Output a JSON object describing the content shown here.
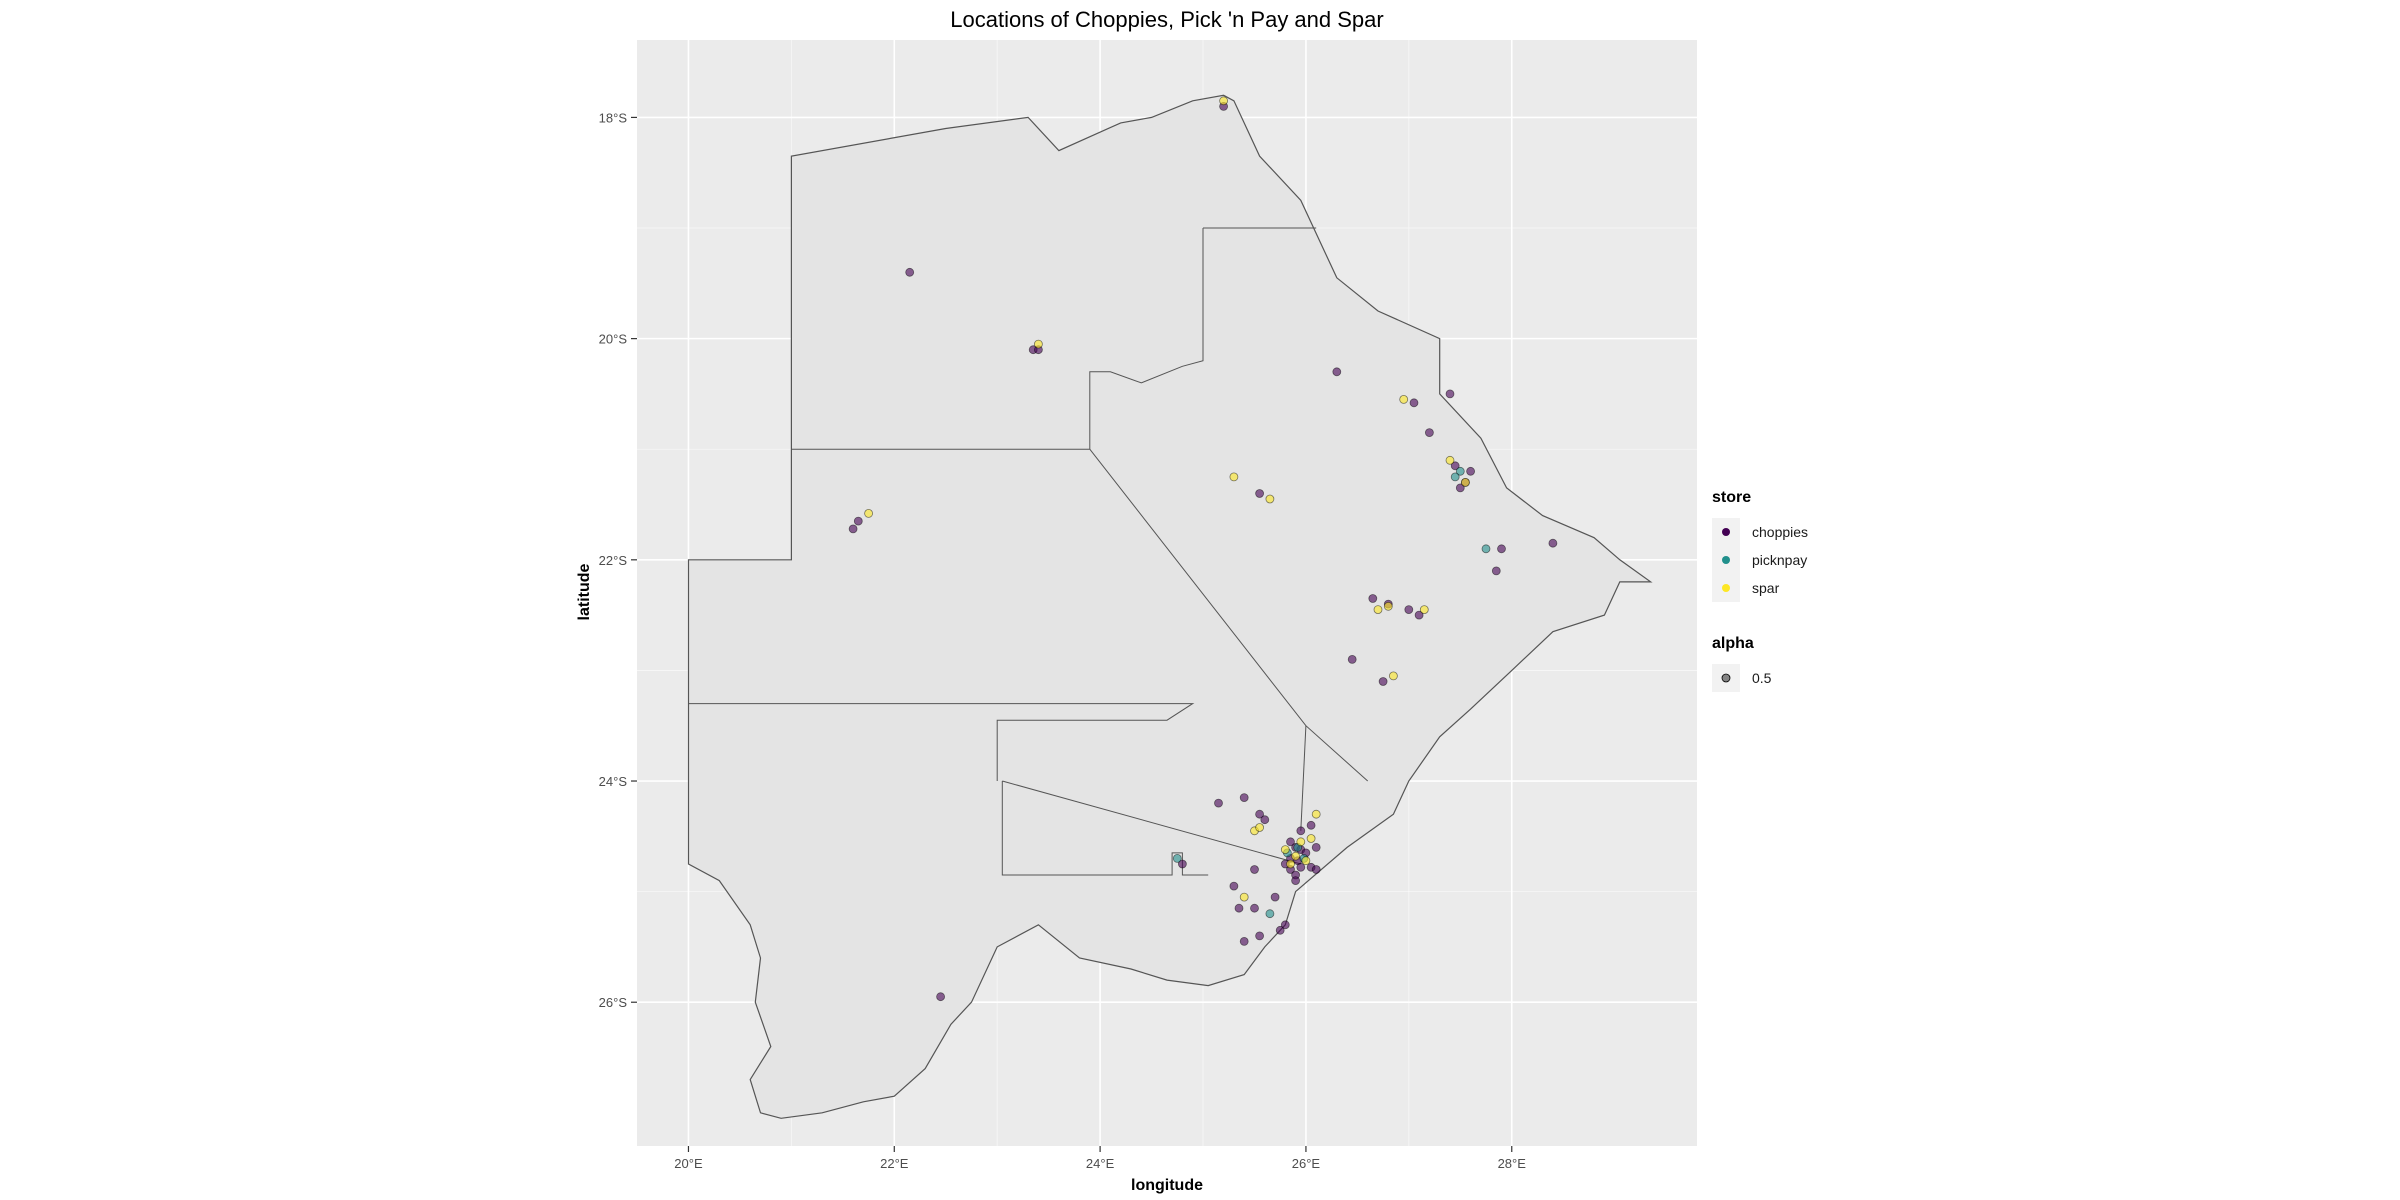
{
  "chart_data": {
    "type": "scatter",
    "title": "Locations of Choppies, Pick 'n Pay and Spar",
    "xlabel": "longitude",
    "ylabel": "latitude",
    "xlim": [
      19.5,
      29.8
    ],
    "ylim": [
      -27.3,
      -17.3
    ],
    "x_ticks": [
      20,
      22,
      24,
      26,
      28
    ],
    "x_tick_labels": [
      "20°E",
      "22°E",
      "24°E",
      "26°E",
      "28°E"
    ],
    "y_ticks": [
      -18,
      -20,
      -22,
      -24,
      -26
    ],
    "y_tick_labels": [
      "18°S",
      "20°S",
      "22°S",
      "24°S",
      "26°S"
    ],
    "grid": true,
    "panel_background": "#ebebeb",
    "gridline_color": "#ffffff",
    "map_fill": "#e4e4e4",
    "map_stroke": "#555555",
    "legends": [
      {
        "title": "store",
        "entries": [
          {
            "label": "choppies",
            "color": "#440154"
          },
          {
            "label": "picknpay",
            "color": "#21908c"
          },
          {
            "label": "spar",
            "color": "#fde725"
          }
        ]
      },
      {
        "title": "alpha",
        "entries": [
          {
            "label": "0.5",
            "color": "#555555"
          }
        ]
      }
    ],
    "series": [
      {
        "name": "choppies",
        "color": "#440154",
        "points": [
          [
            25.2,
            -17.9
          ],
          [
            22.15,
            -19.4
          ],
          [
            23.35,
            -20.1
          ],
          [
            23.4,
            -20.1
          ],
          [
            26.3,
            -20.3
          ],
          [
            27.05,
            -20.58
          ],
          [
            27.4,
            -20.5
          ],
          [
            27.2,
            -20.85
          ],
          [
            27.45,
            -21.15
          ],
          [
            27.6,
            -21.2
          ],
          [
            27.55,
            -21.3
          ],
          [
            27.5,
            -21.35
          ],
          [
            25.55,
            -21.4
          ],
          [
            21.65,
            -21.65
          ],
          [
            21.6,
            -21.72
          ],
          [
            27.9,
            -21.9
          ],
          [
            27.85,
            -22.1
          ],
          [
            28.4,
            -21.85
          ],
          [
            26.65,
            -22.35
          ],
          [
            26.8,
            -22.4
          ],
          [
            27.0,
            -22.45
          ],
          [
            27.1,
            -22.5
          ],
          [
            26.45,
            -22.9
          ],
          [
            26.75,
            -23.1
          ],
          [
            25.4,
            -24.15
          ],
          [
            25.15,
            -24.2
          ],
          [
            25.55,
            -24.3
          ],
          [
            25.6,
            -24.35
          ],
          [
            25.95,
            -24.45
          ],
          [
            26.05,
            -24.4
          ],
          [
            25.85,
            -24.55
          ],
          [
            25.9,
            -24.6
          ],
          [
            25.95,
            -24.62
          ],
          [
            26.0,
            -24.65
          ],
          [
            25.85,
            -24.7
          ],
          [
            25.92,
            -24.72
          ],
          [
            25.8,
            -24.75
          ],
          [
            25.95,
            -24.78
          ],
          [
            26.05,
            -24.78
          ],
          [
            25.85,
            -24.8
          ],
          [
            25.9,
            -24.85
          ],
          [
            26.1,
            -24.6
          ],
          [
            26.1,
            -24.8
          ],
          [
            25.9,
            -24.9
          ],
          [
            25.5,
            -24.8
          ],
          [
            25.3,
            -24.95
          ],
          [
            25.7,
            -25.05
          ],
          [
            25.35,
            -25.15
          ],
          [
            25.5,
            -25.15
          ],
          [
            25.8,
            -25.3
          ],
          [
            25.75,
            -25.35
          ],
          [
            25.55,
            -25.4
          ],
          [
            25.4,
            -25.45
          ],
          [
            24.8,
            -24.75
          ],
          [
            22.45,
            -25.95
          ]
        ]
      },
      {
        "name": "picknpay",
        "color": "#21908c",
        "points": [
          [
            27.5,
            -21.2
          ],
          [
            27.45,
            -21.25
          ],
          [
            27.75,
            -21.9
          ],
          [
            25.92,
            -24.6
          ],
          [
            25.82,
            -24.65
          ],
          [
            25.98,
            -24.7
          ],
          [
            24.75,
            -24.7
          ],
          [
            25.65,
            -25.2
          ]
        ]
      },
      {
        "name": "spar",
        "color": "#fde725",
        "points": [
          [
            25.2,
            -17.85
          ],
          [
            23.4,
            -20.05
          ],
          [
            26.95,
            -20.55
          ],
          [
            27.4,
            -21.1
          ],
          [
            25.3,
            -21.25
          ],
          [
            25.65,
            -21.45
          ],
          [
            21.75,
            -21.58
          ],
          [
            27.55,
            -21.3
          ],
          [
            26.7,
            -22.45
          ],
          [
            26.8,
            -22.42
          ],
          [
            27.15,
            -22.45
          ],
          [
            26.85,
            -23.05
          ],
          [
            26.1,
            -24.3
          ],
          [
            25.5,
            -24.45
          ],
          [
            25.55,
            -24.42
          ],
          [
            26.05,
            -24.52
          ],
          [
            25.8,
            -24.62
          ],
          [
            25.9,
            -24.68
          ],
          [
            26.0,
            -24.72
          ],
          [
            25.95,
            -24.55
          ],
          [
            25.85,
            -24.75
          ],
          [
            25.4,
            -25.05
          ]
        ]
      }
    ]
  }
}
